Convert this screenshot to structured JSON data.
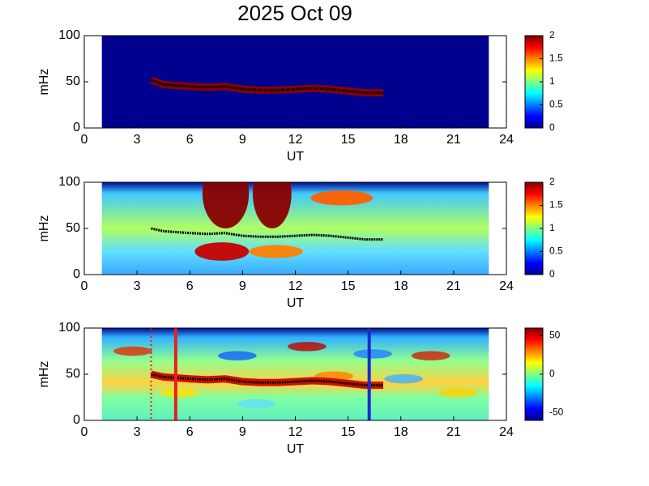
{
  "chart_data": [
    {
      "type": "spectrogram",
      "title": "2025 Oct 09",
      "xlabel": "UT",
      "ylabel": "mHz",
      "xlim": [
        0,
        24
      ],
      "xticks": [
        0,
        3,
        6,
        9,
        12,
        15,
        18,
        21,
        24
      ],
      "ylim": [
        0,
        100
      ],
      "yticks": [
        0,
        50,
        100
      ],
      "data_xlim": [
        1,
        23
      ],
      "colormap": "jet",
      "style": "power",
      "clim": [
        0,
        2
      ],
      "cticks": [
        0,
        0.5,
        1,
        1.5,
        2
      ],
      "trace": {
        "x": [
          3.8,
          4.5,
          6,
          7,
          8,
          9,
          10,
          11,
          12,
          13,
          14,
          15,
          16,
          17
        ],
        "values": [
          52,
          47,
          45,
          44,
          45,
          42,
          41,
          41,
          42,
          43,
          42,
          40,
          38,
          38
        ]
      }
    },
    {
      "type": "spectrogram",
      "xlabel": "UT",
      "ylabel": "mHz",
      "xlim": [
        0,
        24
      ],
      "xticks": [
        0,
        3,
        6,
        9,
        12,
        15,
        18,
        21,
        24
      ],
      "ylim": [
        0,
        100
      ],
      "yticks": [
        0,
        50,
        100
      ],
      "data_xlim": [
        1,
        23
      ],
      "colormap": "jet",
      "style": "background",
      "clim": [
        0,
        2
      ],
      "cticks": [
        0,
        0.5,
        1,
        1.5,
        2
      ],
      "trace": {
        "x": [
          3.8,
          4.5,
          6,
          7,
          8,
          9,
          10,
          11,
          12,
          13,
          14,
          15,
          16,
          17
        ],
        "values": [
          50,
          47,
          45,
          44,
          45,
          42,
          41,
          41,
          42,
          43,
          42,
          40,
          38,
          38
        ]
      }
    },
    {
      "type": "spectrogram",
      "xlabel": "UT",
      "ylabel": "mHz",
      "xlim": [
        0,
        24
      ],
      "xticks": [
        0,
        3,
        6,
        9,
        12,
        15,
        18,
        21,
        24
      ],
      "ylim": [
        0,
        100
      ],
      "yticks": [
        0,
        50,
        100
      ],
      "data_xlim": [
        1,
        23
      ],
      "colormap": "jet",
      "style": "phase",
      "clim": [
        -60,
        60
      ],
      "cticks": [
        -50,
        0,
        50
      ],
      "trace": {
        "x": [
          3.8,
          4.5,
          6,
          7,
          8,
          9,
          10,
          11,
          12,
          13,
          14,
          15,
          16,
          17
        ],
        "values": [
          50,
          47,
          45,
          44,
          45,
          42,
          41,
          41,
          42,
          43,
          42,
          40,
          38,
          38
        ]
      },
      "markers": [
        {
          "x": 5.2,
          "color": "#e8201c"
        },
        {
          "x": 16.2,
          "color": "#1a2bd0"
        },
        {
          "x": 3.8,
          "color": "#e8201c",
          "dashed": true
        }
      ]
    }
  ]
}
